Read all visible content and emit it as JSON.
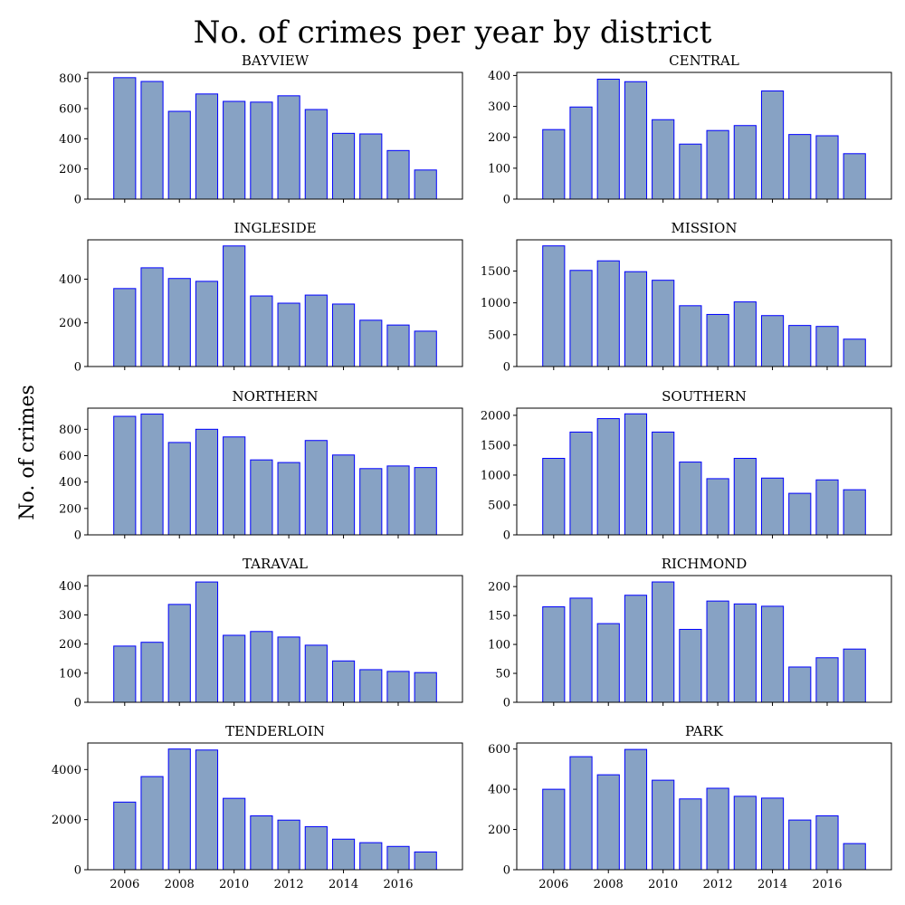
{
  "figure": {
    "title": "No. of crimes per year by district",
    "ylabel": "No. of crimes"
  },
  "colors": {
    "bar_fill": "#87a2c4",
    "bar_edge": "#0000ff",
    "axes": "#000000"
  },
  "chart_data": [
    {
      "type": "bar",
      "title": "BAYVIEW",
      "x": [
        2006,
        2007,
        2008,
        2009,
        2010,
        2011,
        2012,
        2013,
        2014,
        2015,
        2016,
        2017
      ],
      "values": [
        805,
        780,
        582,
        697,
        648,
        643,
        685,
        594,
        436,
        432,
        322,
        193
      ],
      "ylim": [
        0,
        840
      ],
      "yticks": [
        0,
        200,
        400,
        600,
        800
      ],
      "xticks": [
        2006,
        2008,
        2010,
        2012,
        2014,
        2016
      ],
      "show_xticklabels": false
    },
    {
      "type": "bar",
      "title": "CENTRAL",
      "x": [
        2006,
        2007,
        2008,
        2009,
        2010,
        2011,
        2012,
        2013,
        2014,
        2015,
        2016,
        2017
      ],
      "values": [
        225,
        298,
        388,
        380,
        257,
        178,
        222,
        238,
        350,
        209,
        205,
        147
      ],
      "ylim": [
        0,
        410
      ],
      "yticks": [
        0,
        100,
        200,
        300,
        400
      ],
      "xticks": [
        2006,
        2008,
        2010,
        2012,
        2014,
        2016
      ],
      "show_xticklabels": false
    },
    {
      "type": "bar",
      "title": "INGLESIDE",
      "x": [
        2006,
        2007,
        2008,
        2009,
        2010,
        2011,
        2012,
        2013,
        2014,
        2015,
        2016,
        2017
      ],
      "values": [
        357,
        452,
        403,
        390,
        552,
        323,
        290,
        327,
        286,
        212,
        190,
        162
      ],
      "ylim": [
        0,
        580
      ],
      "yticks": [
        0,
        200,
        400
      ],
      "xticks": [
        2006,
        2008,
        2010,
        2012,
        2014,
        2016
      ],
      "show_xticklabels": false
    },
    {
      "type": "bar",
      "title": "MISSION",
      "x": [
        2006,
        2007,
        2008,
        2009,
        2010,
        2011,
        2012,
        2013,
        2014,
        2015,
        2016,
        2017
      ],
      "values": [
        1895,
        1510,
        1660,
        1490,
        1355,
        955,
        818,
        1015,
        800,
        645,
        630,
        430
      ],
      "ylim": [
        0,
        1990
      ],
      "yticks": [
        0,
        500,
        1000,
        1500
      ],
      "xticks": [
        2006,
        2008,
        2010,
        2012,
        2014,
        2016
      ],
      "show_xticklabels": false
    },
    {
      "type": "bar",
      "title": "NORTHERN",
      "x": [
        2006,
        2007,
        2008,
        2009,
        2010,
        2011,
        2012,
        2013,
        2014,
        2015,
        2016,
        2017
      ],
      "values": [
        898,
        915,
        700,
        800,
        742,
        568,
        548,
        715,
        605,
        502,
        522,
        510
      ],
      "ylim": [
        0,
        960
      ],
      "yticks": [
        0,
        200,
        400,
        600,
        800
      ],
      "xticks": [
        2006,
        2008,
        2010,
        2012,
        2014,
        2016
      ],
      "show_xticklabels": false
    },
    {
      "type": "bar",
      "title": "SOUTHERN",
      "x": [
        2006,
        2007,
        2008,
        2009,
        2010,
        2011,
        2012,
        2013,
        2014,
        2015,
        2016,
        2017
      ],
      "values": [
        1280,
        1720,
        1945,
        2025,
        1720,
        1218,
        940,
        1280,
        950,
        695,
        920,
        755
      ],
      "ylim": [
        0,
        2120
      ],
      "yticks": [
        0,
        500,
        1000,
        1500,
        2000
      ],
      "xticks": [
        2006,
        2008,
        2010,
        2012,
        2014,
        2016
      ],
      "show_xticklabels": false
    },
    {
      "type": "bar",
      "title": "TARAVAL",
      "x": [
        2006,
        2007,
        2008,
        2009,
        2010,
        2011,
        2012,
        2013,
        2014,
        2015,
        2016,
        2017
      ],
      "values": [
        193,
        206,
        336,
        413,
        230,
        243,
        224,
        196,
        142,
        112,
        106,
        102
      ],
      "ylim": [
        0,
        435
      ],
      "yticks": [
        0,
        100,
        200,
        300,
        400
      ],
      "xticks": [
        2006,
        2008,
        2010,
        2012,
        2014,
        2016
      ],
      "show_xticklabels": false
    },
    {
      "type": "bar",
      "title": "RICHMOND",
      "x": [
        2006,
        2007,
        2008,
        2009,
        2010,
        2011,
        2012,
        2013,
        2014,
        2015,
        2016,
        2017
      ],
      "values": [
        165,
        180,
        136,
        185,
        208,
        126,
        175,
        170,
        166,
        61,
        77,
        92
      ],
      "ylim": [
        0,
        219
      ],
      "yticks": [
        0,
        50,
        100,
        150,
        200
      ],
      "xticks": [
        2006,
        2008,
        2010,
        2012,
        2014,
        2016
      ],
      "show_xticklabels": false
    },
    {
      "type": "bar",
      "title": "TENDERLOIN",
      "x": [
        2006,
        2007,
        2008,
        2009,
        2010,
        2011,
        2012,
        2013,
        2014,
        2015,
        2016,
        2017
      ],
      "values": [
        2700,
        3720,
        4820,
        4780,
        2850,
        2150,
        1980,
        1720,
        1220,
        1080,
        930,
        710
      ],
      "ylim": [
        0,
        5060
      ],
      "yticks": [
        0,
        2000,
        4000
      ],
      "xticks": [
        2006,
        2008,
        2010,
        2012,
        2014,
        2016
      ],
      "show_xticklabels": true
    },
    {
      "type": "bar",
      "title": "PARK",
      "x": [
        2006,
        2007,
        2008,
        2009,
        2010,
        2011,
        2012,
        2013,
        2014,
        2015,
        2016,
        2017
      ],
      "values": [
        400,
        562,
        472,
        598,
        445,
        352,
        405,
        365,
        356,
        247,
        268,
        130
      ],
      "ylim": [
        0,
        630
      ],
      "yticks": [
        0,
        200,
        400,
        600
      ],
      "xticks": [
        2006,
        2008,
        2010,
        2012,
        2014,
        2016
      ],
      "show_xticklabels": true
    }
  ]
}
